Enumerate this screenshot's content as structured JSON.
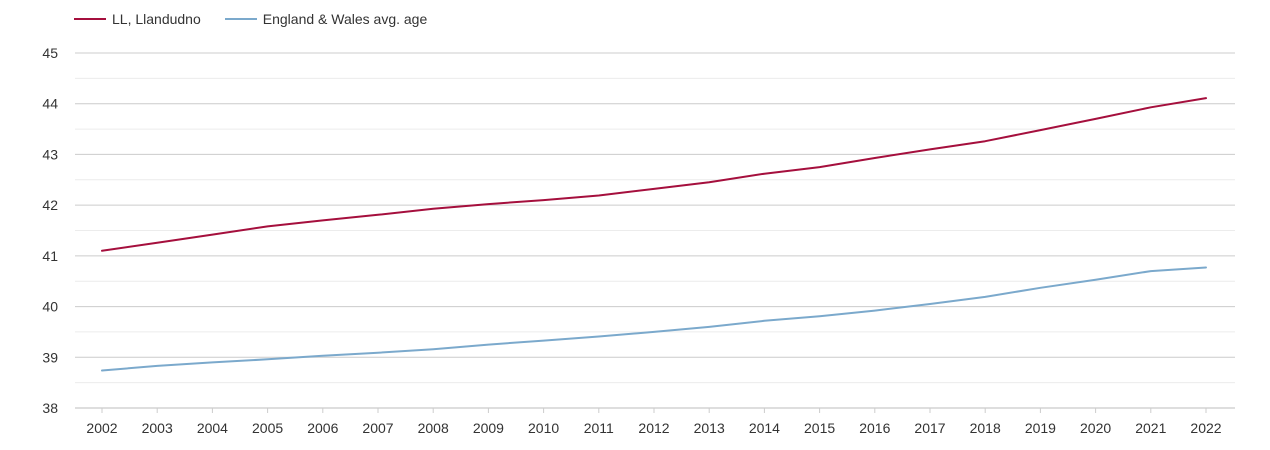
{
  "chart_data": {
    "type": "line",
    "title": "",
    "xlabel": "",
    "ylabel": "",
    "x": [
      "2002",
      "2003",
      "2004",
      "2005",
      "2006",
      "2007",
      "2008",
      "2009",
      "2010",
      "2011",
      "2012",
      "2013",
      "2014",
      "2015",
      "2016",
      "2017",
      "2018",
      "2019",
      "2020",
      "2021",
      "2022"
    ],
    "y_ticks": [
      "38",
      "39",
      "40",
      "41",
      "42",
      "43",
      "44",
      "45"
    ],
    "ylim": [
      38,
      45
    ],
    "grid": true,
    "legend_position": "top-left",
    "series": [
      {
        "name": "LL, Llandudno",
        "color": "#a50f3d",
        "values": [
          41.1,
          41.26,
          41.42,
          41.58,
          41.7,
          41.81,
          41.93,
          42.02,
          42.1,
          42.19,
          42.32,
          42.45,
          42.62,
          42.75,
          42.93,
          43.1,
          43.26,
          43.48,
          43.7,
          43.93,
          44.11
        ]
      },
      {
        "name": "England & Wales avg. age",
        "color": "#7ba9cc",
        "values": [
          38.74,
          38.83,
          38.9,
          38.96,
          39.03,
          39.09,
          39.16,
          39.25,
          39.33,
          39.41,
          39.5,
          39.6,
          39.72,
          39.81,
          39.92,
          40.05,
          40.19,
          40.37,
          40.53,
          40.7,
          40.77
        ]
      }
    ]
  }
}
